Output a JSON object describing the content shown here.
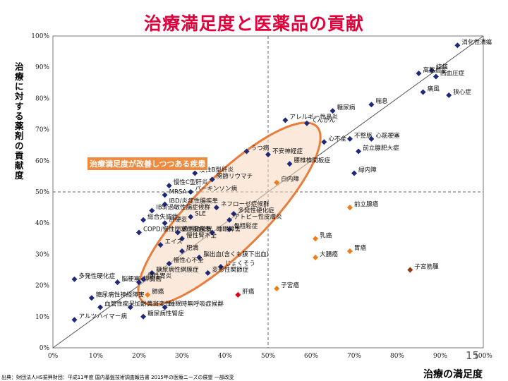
{
  "page": {
    "title": "治療満足度と医薬品の貢献",
    "page_number": "15",
    "source_note": "出典：財団法人HS振興財団：平成11年度 国内基盤技術調査報告書 2015年の医療ニーズの展望 一部改変"
  },
  "colors": {
    "title": "#e0003c",
    "navy": "#1e2a78",
    "orange": "#f07d18",
    "red": "#e00010",
    "brown": "#8b3a14",
    "ellipse_fill": "#f8d8c0",
    "ellipse_stroke": "#e87d3e"
  },
  "chart_data": {
    "type": "scatter",
    "title": "治療満足度と医薬品の貢献",
    "xlabel": "治療の満足度",
    "ylabel": "治療に対する薬剤の貢献度",
    "xlim": [
      0,
      100
    ],
    "ylim": [
      0,
      100
    ],
    "x_ticks": [
      "0%",
      "10%",
      "20%",
      "30%",
      "40%",
      "50%",
      "60%",
      "70%",
      "80%",
      "90%",
      "100%"
    ],
    "y_ticks": [
      "0%",
      "10%",
      "20%",
      "30%",
      "40%",
      "50%",
      "60%",
      "70%",
      "80%",
      "90%",
      "100%"
    ],
    "reference_lines": {
      "x": 50,
      "y": 50
    },
    "callout": "治療満足度が改善しつつある疾患",
    "points": [
      {
        "label": "消化性潰瘍",
        "x": 94,
        "y": 97,
        "group": "navy"
      },
      {
        "label": "結核",
        "x": 88,
        "y": 89,
        "group": "navy"
      },
      {
        "label": "高脂血症",
        "x": 85,
        "y": 88,
        "group": "navy"
      },
      {
        "label": "高血圧症",
        "x": 89,
        "y": 87,
        "group": "navy"
      },
      {
        "label": "痛風",
        "x": 86,
        "y": 82,
        "group": "navy"
      },
      {
        "label": "狭心症",
        "x": 92,
        "y": 81,
        "group": "navy"
      },
      {
        "label": "喘息",
        "x": 74,
        "y": 78,
        "group": "navy"
      },
      {
        "label": "糖尿病",
        "x": 65,
        "y": 76,
        "group": "navy"
      },
      {
        "label": "アレルギー性鼻炎",
        "x": 54,
        "y": 73,
        "group": "navy"
      },
      {
        "label": "てんかん",
        "x": 59,
        "y": 72,
        "group": "navy"
      },
      {
        "label": "不整脈",
        "x": 69,
        "y": 67,
        "group": "navy"
      },
      {
        "label": "心筋梗塞",
        "x": 74,
        "y": 67,
        "group": "navy"
      },
      {
        "label": "心不全",
        "x": 63,
        "y": 66,
        "group": "navy"
      },
      {
        "label": "前立腺肥大症",
        "x": 71,
        "y": 63,
        "group": "navy"
      },
      {
        "label": "うつ病",
        "x": 45,
        "y": 63,
        "group": "navy"
      },
      {
        "label": "不安神経症",
        "x": 50,
        "y": 62,
        "group": "navy"
      },
      {
        "label": "腰椎椎間板症",
        "x": 55,
        "y": 59,
        "group": "navy"
      },
      {
        "label": "緑内障",
        "x": 70,
        "y": 56,
        "group": "navy"
      },
      {
        "label": "慢性B型肝炎",
        "x": 33,
        "y": 56,
        "group": "navy"
      },
      {
        "label": "関節リウマチ",
        "x": 37,
        "y": 54,
        "group": "navy"
      },
      {
        "label": "白内障",
        "x": 52,
        "y": 53,
        "group": "orange"
      },
      {
        "label": "慢性C型肝炎",
        "x": 27,
        "y": 52,
        "group": "navy"
      },
      {
        "label": "MRSA",
        "x": 26,
        "y": 49,
        "group": "navy"
      },
      {
        "label": "パーキンソン病",
        "x": 32,
        "y": 50,
        "group": "navy"
      },
      {
        "label": "IBD/炎症性腸疾患",
        "x": 26,
        "y": 46,
        "group": "navy"
      },
      {
        "label": "ネフローゼ症候群",
        "x": 38,
        "y": 45,
        "group": "navy"
      },
      {
        "label": "IBS/過敏性腸症候群",
        "x": 23,
        "y": 44,
        "group": "navy"
      },
      {
        "label": "多発性硬化症",
        "x": 42,
        "y": 43,
        "group": "navy"
      },
      {
        "label": "SLE",
        "x": 32,
        "y": 42,
        "group": "navy"
      },
      {
        "label": "アトピー性皮膚炎",
        "x": 41,
        "y": 41,
        "group": "navy"
      },
      {
        "label": "総合失調症",
        "x": 21,
        "y": 41,
        "group": "navy"
      },
      {
        "label": "肝硬変",
        "x": 26,
        "y": 40,
        "group": "navy"
      },
      {
        "label": "骨粗鬆症",
        "x": 41,
        "y": 38,
        "group": "navy"
      },
      {
        "label": "COPD/慢性閉塞性肺疾患",
        "x": 20,
        "y": 37,
        "group": "navy"
      },
      {
        "label": "過活動膀胱",
        "x": 29,
        "y": 37,
        "group": "navy"
      },
      {
        "label": "睡眠障害",
        "x": 37,
        "y": 37,
        "group": "navy"
      },
      {
        "label": "慢性腎不全",
        "x": 30,
        "y": 35,
        "group": "navy"
      },
      {
        "label": "エイズ",
        "x": 25,
        "y": 33,
        "group": "navy"
      },
      {
        "label": "乳癌",
        "x": 61,
        "y": 35,
        "group": "orange"
      },
      {
        "label": "前立腺癌",
        "x": 69,
        "y": 45,
        "group": "orange"
      },
      {
        "label": "肥満",
        "x": 30,
        "y": 31,
        "group": "navy"
      },
      {
        "label": "脳出血(含くも膜下出血)",
        "x": 34,
        "y": 29,
        "group": "navy"
      },
      {
        "label": "大腸癌",
        "x": 61,
        "y": 29,
        "group": "orange"
      },
      {
        "label": "胃癌",
        "x": 69,
        "y": 31,
        "group": "orange"
      },
      {
        "label": "じょくそう",
        "x": 39,
        "y": 26,
        "group": "navy"
      },
      {
        "label": "慢性心不全",
        "x": 27,
        "y": 27,
        "group": "navy"
      },
      {
        "label": "多発性硬化症",
        "x": 5,
        "y": 22,
        "group": "navy"
      },
      {
        "label": "糖尿病性網膜症",
        "x": 23,
        "y": 24,
        "group": "navy"
      },
      {
        "label": "変形性関節症",
        "x": 36,
        "y": 24,
        "group": "navy"
      },
      {
        "label": "脳梗塞",
        "x": 15,
        "y": 21,
        "group": "navy"
      },
      {
        "label": "膵臓癌",
        "x": 20,
        "y": 21,
        "group": "navy"
      },
      {
        "label": "慢性胃炎",
        "x": 21,
        "y": 22,
        "group": "navy"
      },
      {
        "label": "子宮筋腫",
        "x": 83,
        "y": 25,
        "group": "brown"
      },
      {
        "label": "子宮癌",
        "x": 52,
        "y": 19,
        "group": "orange"
      },
      {
        "label": "肺癌",
        "x": 22,
        "y": 17,
        "group": "orange"
      },
      {
        "label": "肝癌",
        "x": 43,
        "y": 17,
        "group": "red"
      },
      {
        "label": "糖尿病性神経障害",
        "x": 9,
        "y": 16,
        "group": "navy"
      },
      {
        "label": "血管性痴呆",
        "x": 11,
        "y": 13,
        "group": "navy"
      },
      {
        "label": "加齢黄斑変性",
        "x": 18,
        "y": 13,
        "group": "navy"
      },
      {
        "label": "睡眠時無呼吸症候群",
        "x": 26,
        "y": 13,
        "group": "navy"
      },
      {
        "label": "糖尿病性腎症",
        "x": 21,
        "y": 10,
        "group": "navy"
      },
      {
        "label": "アルツハイマー病",
        "x": 5,
        "y": 9,
        "group": "navy"
      }
    ]
  }
}
